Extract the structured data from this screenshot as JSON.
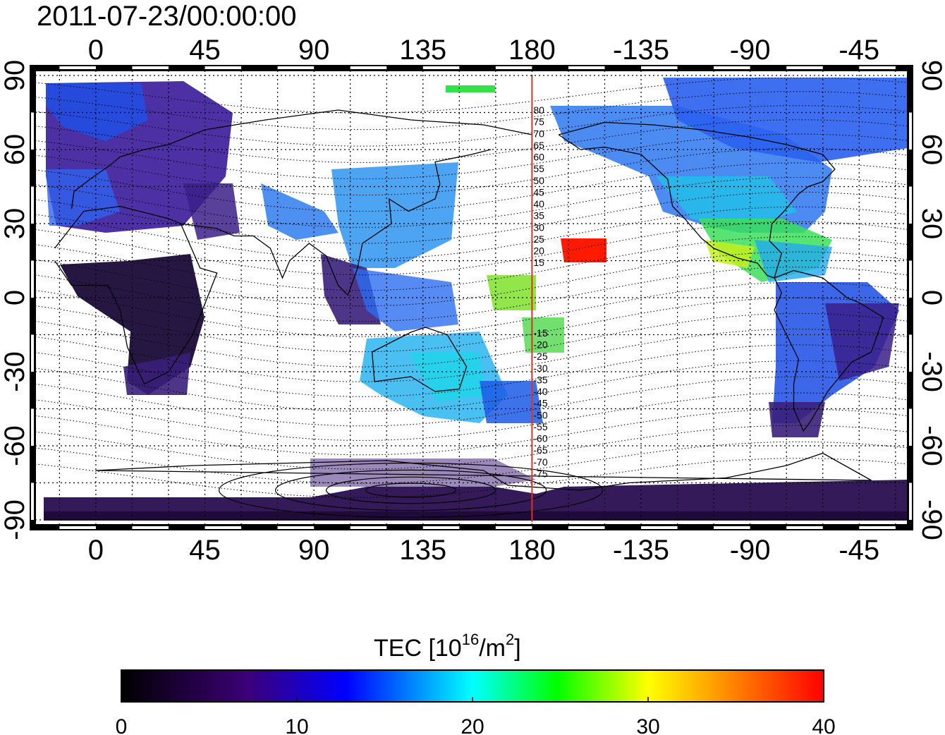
{
  "title": "2011-07-23/00:00:00",
  "map": {
    "x_ticks": [
      "0",
      "45",
      "90",
      "135",
      "180",
      "-135",
      "-90",
      "-45"
    ],
    "y_ticks": [
      "90",
      "60",
      "30",
      "0",
      "-30",
      "-60",
      "-90"
    ],
    "x_tick_lon": [
      0,
      45,
      90,
      135,
      180,
      225,
      270,
      315
    ],
    "y_tick_lat": [
      90,
      60,
      30,
      0,
      -30,
      -60,
      -90
    ],
    "lon_range": [
      -25,
      335
    ],
    "lat_range": [
      -92,
      92
    ],
    "grid": "dotted every 15 degrees",
    "meridian_line_lon": 180,
    "maglat_labels": [
      "80",
      "75",
      "70",
      "65",
      "60",
      "55",
      "50",
      "45",
      "40",
      "35",
      "30",
      "25",
      "20",
      "15",
      "-15",
      "-20",
      "-25",
      "-30",
      "-35",
      "-40",
      "-45",
      "-50",
      "-55",
      "-60",
      "-65",
      "-70",
      "-75"
    ],
    "colors": {
      "meridian": "#e03020",
      "grid": "#000000"
    }
  },
  "colorbar": {
    "title_prefix": "TEC  [10",
    "title_sup": "16",
    "title_mid": "/m",
    "title_sup2": "2",
    "title_suffix": "]",
    "ticks": [
      "0",
      "10",
      "20",
      "30",
      "40"
    ],
    "range": [
      0,
      40
    ],
    "colors": [
      "#000000",
      "#3c0078",
      "#0000ff",
      "#00ffff",
      "#00ff00",
      "#ffff00",
      "#ff0000"
    ]
  }
}
